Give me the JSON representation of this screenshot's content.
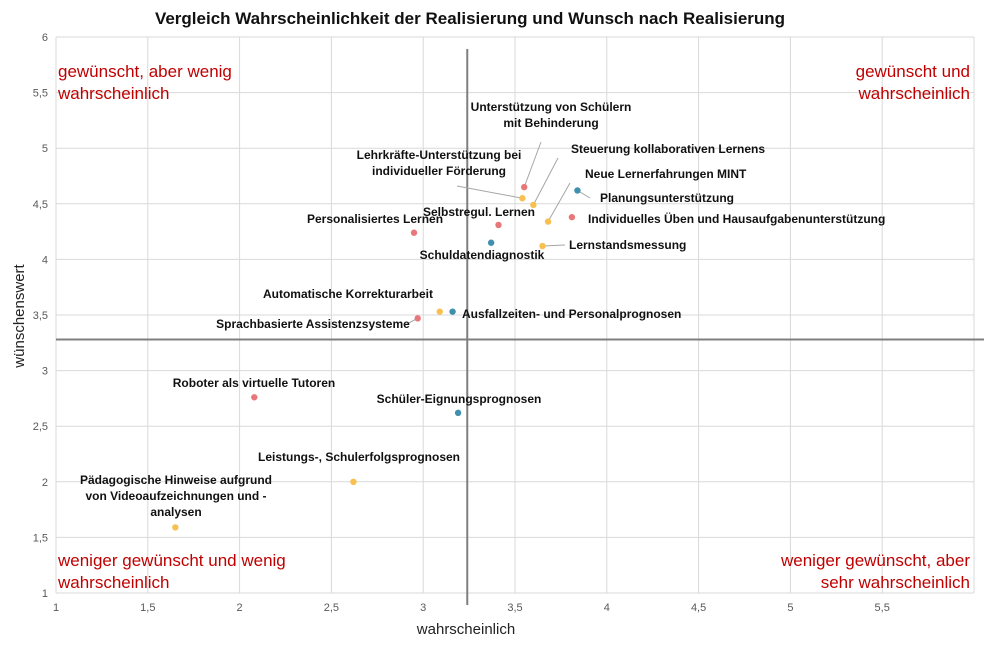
{
  "chart_data": {
    "type": "scatter",
    "title": "Vergleich Wahrscheinlichkeit der Realisierung und Wunsch nach Realisierung",
    "xlabel": "wahrscheinlich",
    "ylabel": "wünschenswert",
    "xlim": [
      1,
      6
    ],
    "ylim": [
      1,
      6
    ],
    "x_ticks": [
      "1",
      "1,5",
      "2",
      "2,5",
      "3",
      "3,5",
      "4",
      "4,5",
      "5",
      "5,5"
    ],
    "y_ticks": [
      "1",
      "1,5",
      "2",
      "2,5",
      "3",
      "3,5",
      "4",
      "4,5",
      "5",
      "5,5",
      "6"
    ],
    "grid": true,
    "divider_x": 3.24,
    "divider_y": 3.28,
    "colors": {
      "red": "#e8777a",
      "yellow": "#f7c04f",
      "blue": "#3f8fae"
    },
    "quadrant_labels": [
      {
        "pos": "top-left",
        "lines": [
          "gewünscht, aber wenig",
          "wahrscheinlich"
        ]
      },
      {
        "pos": "top-right",
        "lines": [
          "gewünscht und",
          "wahrscheinlich"
        ]
      },
      {
        "pos": "bottom-left",
        "lines": [
          "weniger gewünscht und wenig",
          "wahrscheinlich"
        ]
      },
      {
        "pos": "bottom-right",
        "lines": [
          "weniger gewünscht,  aber",
          "sehr wahrscheinlich"
        ]
      }
    ],
    "points": [
      {
        "x": 3.55,
        "y": 4.65,
        "color": "red",
        "label": [
          "Unterstützung von Schülern",
          "mit Behinderung"
        ]
      },
      {
        "x": 3.6,
        "y": 4.49,
        "color": "yellow",
        "label": [
          "Steuerung kollaborativen Lernens"
        ]
      },
      {
        "x": 3.54,
        "y": 4.55,
        "color": "yellow",
        "label": [
          "Lehrkräfte-Unterstützung bei",
          "individueller Förderung"
        ]
      },
      {
        "x": 3.68,
        "y": 4.34,
        "color": "yellow",
        "label": [
          "Neue Lernerfahrungen MINT"
        ]
      },
      {
        "x": 3.84,
        "y": 4.62,
        "color": "blue",
        "label": [
          "Planungsunterstützung"
        ]
      },
      {
        "x": 3.41,
        "y": 4.31,
        "color": "red",
        "label": [
          "Selbstregul. Lernen"
        ]
      },
      {
        "x": 3.81,
        "y": 4.38,
        "color": "red",
        "label": [
          "Individuelles Üben und Hausaufgabenunterstützung"
        ]
      },
      {
        "x": 2.95,
        "y": 4.24,
        "color": "red",
        "label": [
          "Personalisiertes Lernen"
        ]
      },
      {
        "x": 3.37,
        "y": 4.15,
        "color": "blue",
        "label": [
          "Schuldatendiagnostik"
        ]
      },
      {
        "x": 3.65,
        "y": 4.12,
        "color": "yellow",
        "label": [
          "Lernstandsmessung"
        ]
      },
      {
        "x": 3.09,
        "y": 3.53,
        "color": "yellow",
        "label": [
          "Automatische Korrekturarbeit"
        ]
      },
      {
        "x": 3.16,
        "y": 3.53,
        "color": "blue",
        "label": [
          "Ausfallzeiten- und Personalprognosen"
        ]
      },
      {
        "x": 2.97,
        "y": 3.47,
        "color": "red",
        "label": [
          "Sprachbasierte Assistenzsysteme"
        ]
      },
      {
        "x": 2.08,
        "y": 2.76,
        "color": "red",
        "label": [
          "Roboter als virtuelle Tutoren"
        ]
      },
      {
        "x": 3.19,
        "y": 2.62,
        "color": "blue",
        "label": [
          "Schüler-Eignungsprognosen"
        ]
      },
      {
        "x": 2.62,
        "y": 2.0,
        "color": "yellow",
        "label": [
          "Leistungs-, Schulerfolgsprognosen"
        ]
      },
      {
        "x": 1.65,
        "y": 1.59,
        "color": "yellow",
        "label": [
          "Pädagogische Hinweise aufgrund",
          "von Videoaufzeichnungen und -",
          "analysen"
        ]
      }
    ]
  }
}
